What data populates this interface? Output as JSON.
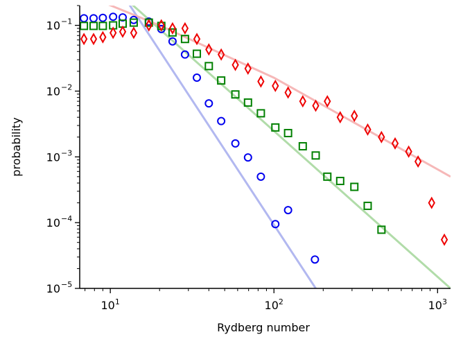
{
  "chart_data": {
    "type": "scatter",
    "xlabel": "Rydberg number",
    "ylabel": "probability",
    "xscale": "log",
    "yscale": "log",
    "xlim": [
      6.5,
      1200
    ],
    "ylim": [
      1e-05,
      0.2
    ],
    "x_ticks": [
      {
        "value": 10,
        "mantissa": "10",
        "exp": "1"
      },
      {
        "value": 100,
        "mantissa": "10",
        "exp": "2"
      },
      {
        "value": 1000,
        "mantissa": "10",
        "exp": "3"
      }
    ],
    "y_ticks": [
      {
        "value": 1e-05,
        "mantissa": "10",
        "exp": "−5"
      },
      {
        "value": 0.0001,
        "mantissa": "10",
        "exp": "−4"
      },
      {
        "value": 0.001,
        "mantissa": "10",
        "exp": "−3"
      },
      {
        "value": 0.01,
        "mantissa": "10",
        "exp": "−2"
      },
      {
        "value": 0.1,
        "mantissa": "10",
        "exp": "−1"
      }
    ],
    "grid": false,
    "series": [
      {
        "marker": "circle",
        "color": "#0000ee",
        "fit_color": "#aab0ee",
        "fit": [
          [
            7,
            2.2
          ],
          [
            180,
            1e-05
          ]
        ],
        "points": [
          [
            6.9,
            0.128
          ],
          [
            7.9,
            0.128
          ],
          [
            9.0,
            0.13
          ],
          [
            10.4,
            0.135
          ],
          [
            11.9,
            0.132
          ],
          [
            13.9,
            0.121
          ],
          [
            17.2,
            0.114
          ],
          [
            20.5,
            0.088
          ],
          [
            24.0,
            0.057
          ],
          [
            28.6,
            0.036
          ],
          [
            33.8,
            0.016
          ],
          [
            40.0,
            0.0065
          ],
          [
            47.6,
            0.0035
          ],
          [
            58.1,
            0.0016
          ],
          [
            69.4,
            0.00098
          ],
          [
            83.2,
            0.0005
          ],
          [
            102,
            9.5e-05
          ],
          [
            122,
            0.000155
          ],
          [
            178,
            2.75e-05
          ]
        ]
      },
      {
        "marker": "square",
        "color": "#008000",
        "fit_color": "#a8d8a0",
        "fit": [
          [
            7,
            0.9
          ],
          [
            1200,
            1e-05
          ]
        ],
        "points": [
          [
            6.9,
            0.098
          ],
          [
            7.9,
            0.098
          ],
          [
            9.0,
            0.098
          ],
          [
            10.4,
            0.1
          ],
          [
            11.9,
            0.106
          ],
          [
            13.9,
            0.11
          ],
          [
            17.2,
            0.11
          ],
          [
            20.5,
            0.098
          ],
          [
            24.0,
            0.078
          ],
          [
            28.6,
            0.062
          ],
          [
            33.8,
            0.037
          ],
          [
            40.0,
            0.024
          ],
          [
            47.6,
            0.0145
          ],
          [
            58.1,
            0.0089
          ],
          [
            69.4,
            0.0067
          ],
          [
            83.2,
            0.0046
          ],
          [
            102,
            0.0028
          ],
          [
            122,
            0.0023
          ],
          [
            150,
            0.00145
          ],
          [
            180,
            0.00105
          ],
          [
            212,
            0.0005
          ],
          [
            254,
            0.00043
          ],
          [
            310,
            0.00035
          ],
          [
            374,
            0.00018
          ],
          [
            454,
            7.8e-05
          ]
        ]
      },
      {
        "marker": "diamond",
        "color": "#ee0000",
        "fit_color": "#f5b0b0",
        "fit": [
          [
            7,
            0.29
          ],
          [
            20,
            0.1
          ],
          [
            100,
            0.016
          ],
          [
            1200,
            0.0005
          ]
        ],
        "points": [
          [
            6.9,
            0.062
          ],
          [
            7.9,
            0.062
          ],
          [
            9.0,
            0.066
          ],
          [
            10.4,
            0.077
          ],
          [
            11.9,
            0.08
          ],
          [
            13.9,
            0.077
          ],
          [
            17.2,
            0.1
          ],
          [
            20.5,
            0.1
          ],
          [
            24.0,
            0.09
          ],
          [
            28.6,
            0.09
          ],
          [
            33.8,
            0.062
          ],
          [
            40.0,
            0.043
          ],
          [
            47.6,
            0.036
          ],
          [
            58.1,
            0.025
          ],
          [
            69.4,
            0.022
          ],
          [
            83.2,
            0.014
          ],
          [
            102,
            0.012
          ],
          [
            122,
            0.0095
          ],
          [
            150,
            0.007
          ],
          [
            180,
            0.006
          ],
          [
            212,
            0.007
          ],
          [
            254,
            0.004
          ],
          [
            310,
            0.0042
          ],
          [
            374,
            0.0026
          ],
          [
            454,
            0.002
          ],
          [
            550,
            0.0016
          ],
          [
            666,
            0.0012
          ],
          [
            760,
            0.00085
          ],
          [
            920,
            0.0002
          ],
          [
            1100,
            5.5e-05
          ]
        ]
      }
    ]
  }
}
